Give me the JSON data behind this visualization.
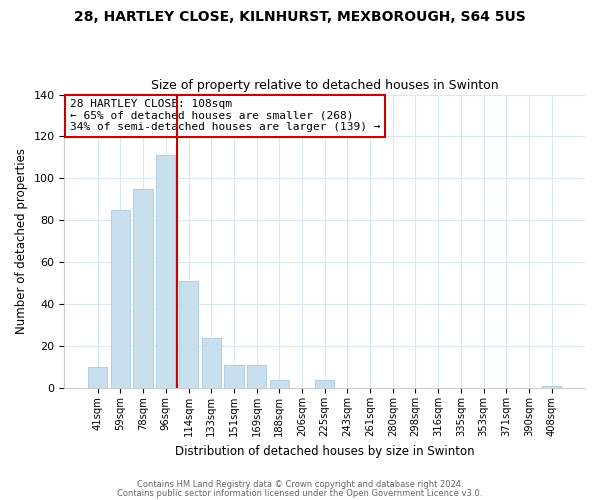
{
  "title": "28, HARTLEY CLOSE, KILNHURST, MEXBOROUGH, S64 5US",
  "subtitle": "Size of property relative to detached houses in Swinton",
  "xlabel": "Distribution of detached houses by size in Swinton",
  "ylabel": "Number of detached properties",
  "bar_labels": [
    "41sqm",
    "59sqm",
    "78sqm",
    "96sqm",
    "114sqm",
    "133sqm",
    "151sqm",
    "169sqm",
    "188sqm",
    "206sqm",
    "225sqm",
    "243sqm",
    "261sqm",
    "280sqm",
    "298sqm",
    "316sqm",
    "335sqm",
    "353sqm",
    "371sqm",
    "390sqm",
    "408sqm"
  ],
  "bar_values": [
    10,
    85,
    95,
    111,
    51,
    24,
    11,
    11,
    4,
    0,
    4,
    0,
    0,
    0,
    0,
    0,
    0,
    0,
    0,
    0,
    1
  ],
  "bar_color": "#c8dff0",
  "bar_edge_color": "#b0cfe8",
  "vline_color": "#cc0000",
  "ylim": [
    0,
    140
  ],
  "yticks": [
    0,
    20,
    40,
    60,
    80,
    100,
    120,
    140
  ],
  "annotation_title": "28 HARTLEY CLOSE: 108sqm",
  "annotation_line1": "← 65% of detached houses are smaller (268)",
  "annotation_line2": "34% of semi-detached houses are larger (139) →",
  "annotation_box_color": "#ffffff",
  "annotation_box_edge": "#cc0000",
  "footer_line1": "Contains HM Land Registry data © Crown copyright and database right 2024.",
  "footer_line2": "Contains public sector information licensed under the Open Government Licence v3.0.",
  "background_color": "#ffffff",
  "grid_color": "#dce8f0"
}
